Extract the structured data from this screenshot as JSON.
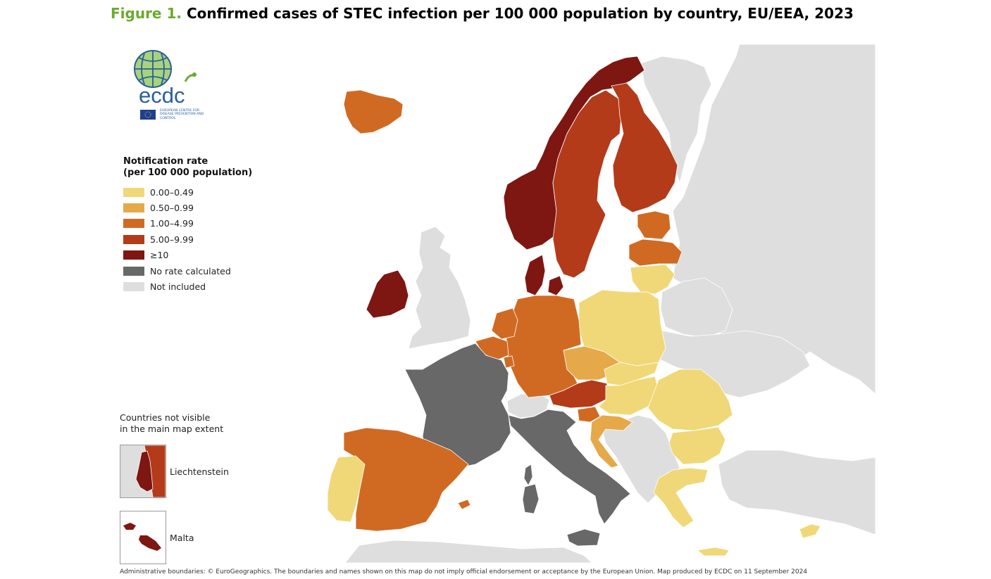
{
  "title": {
    "figure_number": "Figure 1.",
    "text": "Confirmed cases of STEC infection per 100 000 population by country, EU/EEA, 2023"
  },
  "logo": {
    "wordmark": "ecdc",
    "agency_name": "EUROPEAN CENTRE FOR DISEASE PREVENTION AND CONTROL"
  },
  "legend": {
    "title_line1": "Notification rate",
    "title_line2": "(per 100 000 population)",
    "items": [
      {
        "label": "0.00–0.49",
        "color": "#f0d878"
      },
      {
        "label": "0.50–0.99",
        "color": "#e5a94a"
      },
      {
        "label": "1.00–4.99",
        "color": "#d06a23"
      },
      {
        "label": "5.00–9.99",
        "color": "#b33b1a"
      },
      {
        "label": "≥10",
        "color": "#7e1612"
      },
      {
        "label": "No rate calculated",
        "color": "#686868"
      },
      {
        "label": "Not included",
        "color": "#dedede"
      }
    ]
  },
  "insets": {
    "heading_line1": "Countries not visible",
    "heading_line2": "in the main map extent",
    "liechtenstein_label": "Liechtenstein",
    "malta_label": "Malta"
  },
  "footer": "Administrative boundaries: © EuroGeographics. The boundaries and names shown on this map do not imply official endorsement or acceptance by the European Union. Map produced by ECDC on 11 September 2024",
  "map_data": {
    "countries": [
      {
        "name": "Iceland",
        "category": "1.00–4.99"
      },
      {
        "name": "Norway",
        "category": "≥10"
      },
      {
        "name": "Sweden",
        "category": "5.00–9.99"
      },
      {
        "name": "Finland",
        "category": "5.00–9.99"
      },
      {
        "name": "Denmark",
        "category": "≥10"
      },
      {
        "name": "Ireland",
        "category": "≥10"
      },
      {
        "name": "Estonia",
        "category": "1.00–4.99"
      },
      {
        "name": "Latvia",
        "category": "1.00–4.99"
      },
      {
        "name": "Lithuania",
        "category": "0.00–0.49"
      },
      {
        "name": "Poland",
        "category": "0.00–0.49"
      },
      {
        "name": "Germany",
        "category": "1.00–4.99"
      },
      {
        "name": "Netherlands",
        "category": "1.00–4.99"
      },
      {
        "name": "Belgium",
        "category": "1.00–4.99"
      },
      {
        "name": "Luxembourg",
        "category": "1.00–4.99"
      },
      {
        "name": "Czechia",
        "category": "0.50–0.99"
      },
      {
        "name": "Austria",
        "category": "5.00–9.99"
      },
      {
        "name": "Slovakia",
        "category": "0.00–0.49"
      },
      {
        "name": "Hungary",
        "category": "0.00–0.49"
      },
      {
        "name": "Slovenia",
        "category": "1.00–4.99"
      },
      {
        "name": "Croatia",
        "category": "0.50–0.99"
      },
      {
        "name": "Romania",
        "category": "0.00–0.49"
      },
      {
        "name": "Bulgaria",
        "category": "0.00–0.49"
      },
      {
        "name": "Greece",
        "category": "0.00–0.49"
      },
      {
        "name": "Cyprus",
        "category": "0.00–0.49"
      },
      {
        "name": "France",
        "category": "No rate calculated"
      },
      {
        "name": "Italy",
        "category": "No rate calculated"
      },
      {
        "name": "Spain",
        "category": "1.00–4.99"
      },
      {
        "name": "Portugal",
        "category": "0.00–0.49"
      },
      {
        "name": "Liechtenstein",
        "category": "5.00–9.99"
      },
      {
        "name": "Malta",
        "category": "≥10"
      },
      {
        "name": "United Kingdom",
        "category": "Not included"
      },
      {
        "name": "Switzerland",
        "category": "Not included"
      }
    ]
  }
}
